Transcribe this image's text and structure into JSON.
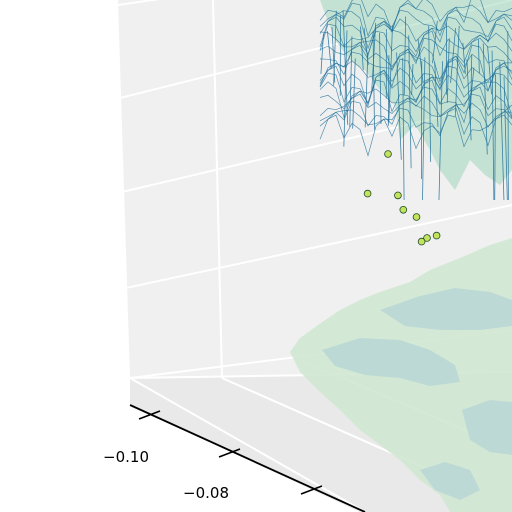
{
  "chart_data": {
    "type": "surface3d",
    "title": "",
    "xlabel": "",
    "ylabel": "",
    "zlabel": "",
    "x_ticks": [
      "−0.10",
      "−0.08"
    ],
    "x_tick_values": [
      -0.1,
      -0.08
    ],
    "grid": true,
    "surface": {
      "style": "wireframe with translucent fill",
      "wire_color": "#1f6f9a",
      "fill_color": "#8fd0b0"
    },
    "floor_contour": {
      "levels": [
        "low",
        "high"
      ],
      "colors": [
        "#b8d6d6",
        "#cfe8d2"
      ]
    },
    "scatter": {
      "color": "#c4e35a",
      "edge_color": "#1d4d2e",
      "points": [
        {
          "x": 0.55,
          "y": 0.3,
          "z": 0.98
        },
        {
          "x": 0.58,
          "y": 0.27,
          "z": 0.86
        },
        {
          "x": 0.48,
          "y": 0.4,
          "z": 0.8
        },
        {
          "x": 0.58,
          "y": 0.33,
          "z": 0.8
        },
        {
          "x": 0.62,
          "y": 0.29,
          "z": 0.8
        },
        {
          "x": 0.64,
          "y": 0.42,
          "z": 0.72
        },
        {
          "x": 0.63,
          "y": 0.36,
          "z": 0.72
        },
        {
          "x": 0.6,
          "y": 0.44,
          "z": 0.68
        }
      ]
    },
    "colors": {
      "pane": "#f0f0f0",
      "pane_grid": "#ffffff",
      "axis_line": "#000000"
    }
  }
}
